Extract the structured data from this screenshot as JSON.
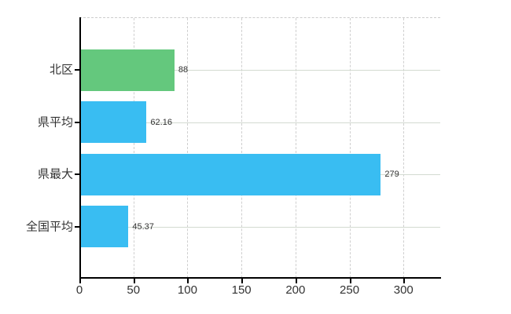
{
  "chart_data": {
    "type": "bar",
    "orientation": "horizontal",
    "categories": [
      "北区",
      "県平均",
      "県最大",
      "全国平均"
    ],
    "values": [
      88,
      62.16,
      279,
      45.37
    ],
    "value_labels": [
      "88",
      "62.16",
      "279",
      "45.37"
    ],
    "series": [
      {
        "name": "北区",
        "value": 88,
        "color": "#64c87d"
      },
      {
        "name": "県平均",
        "value": 62.16,
        "color": "#39bdf2"
      },
      {
        "name": "県最大",
        "value": 279,
        "color": "#39bdf2"
      },
      {
        "name": "全国平均",
        "value": 45.37,
        "color": "#39bdf2"
      }
    ],
    "bar_colors": [
      "#64c87d",
      "#39bdf2",
      "#39bdf2",
      "#39bdf2"
    ],
    "x_ticks": [
      0,
      50,
      100,
      150,
      200,
      250,
      300
    ],
    "x_tick_labels": [
      "0",
      "50",
      "100",
      "150",
      "200",
      "250",
      "300"
    ],
    "xlim": [
      0,
      334
    ],
    "grid": {
      "vertical": "dashed",
      "horizontal": "solid",
      "top_border": "dashed"
    },
    "legend": "none"
  },
  "colors": {
    "background": "#ffffff",
    "axis": "#000000",
    "grid_vertical": "#cfcfcf",
    "grid_horizontal": "#d3dad1",
    "bar_blue": "#39bdf2",
    "bar_green": "#64c87d",
    "label_text": "#333333"
  }
}
